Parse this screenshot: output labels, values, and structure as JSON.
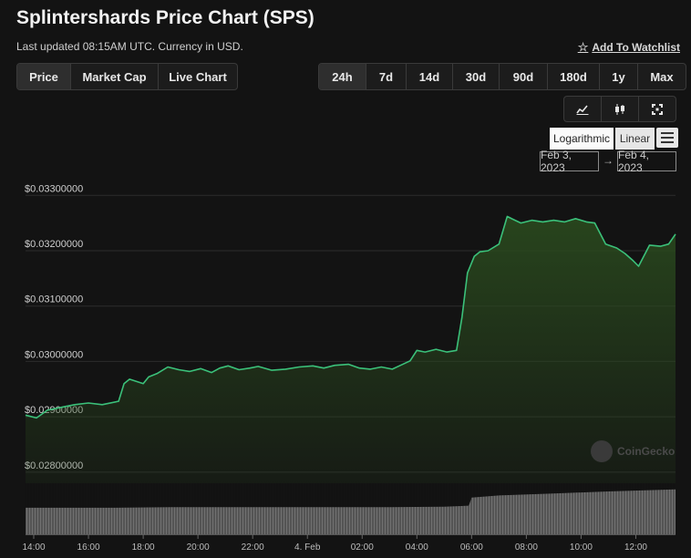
{
  "header": {
    "title": "Splintershards Price Chart (SPS)",
    "updated": "Last updated 08:15AM UTC. Currency in USD.",
    "watchlist": "Add To Watchlist"
  },
  "tabs": [
    {
      "label": "Price",
      "active": true
    },
    {
      "label": "Market Cap",
      "active": false
    },
    {
      "label": "Live Chart",
      "active": false
    }
  ],
  "ranges": [
    {
      "label": "24h",
      "active": true
    },
    {
      "label": "7d",
      "active": false
    },
    {
      "label": "14d",
      "active": false
    },
    {
      "label": "30d",
      "active": false
    },
    {
      "label": "90d",
      "active": false
    },
    {
      "label": "180d",
      "active": false
    },
    {
      "label": "1y",
      "active": false
    },
    {
      "label": "Max",
      "active": false
    }
  ],
  "tools": [
    "line-chart-icon",
    "candlestick-icon",
    "fullscreen-icon"
  ],
  "scale": {
    "logarithmic": "Logarithmic",
    "linear": "Linear"
  },
  "date_range": {
    "from": "Feb 3, 2023",
    "arrow": "→",
    "to": "Feb 4, 2023"
  },
  "watermark": "CoinGecko",
  "colors": {
    "line": "#3bc17a",
    "fill": "#2a4a1e",
    "grid": "#2c2c2c",
    "volume": "#8a8a8a"
  },
  "chart_data": {
    "type": "area",
    "ylim": [
      0.0278,
      0.0334
    ],
    "y_ticks": [
      {
        "value": 0.028,
        "label": "$0.02800000"
      },
      {
        "value": 0.029,
        "label": "$0.02900000"
      },
      {
        "value": 0.03,
        "label": "$0.03000000"
      },
      {
        "value": 0.031,
        "label": "$0.03100000"
      },
      {
        "value": 0.032,
        "label": "$0.03200000"
      },
      {
        "value": 0.033,
        "label": "$0.03300000"
      }
    ],
    "xlim": [
      13.7,
      37.45
    ],
    "x_ticks": [
      {
        "value": 14,
        "label": "14:00"
      },
      {
        "value": 16,
        "label": "16:00"
      },
      {
        "value": 18,
        "label": "18:00"
      },
      {
        "value": 20,
        "label": "20:00"
      },
      {
        "value": 22,
        "label": "22:00"
      },
      {
        "value": 24,
        "label": "4. Feb"
      },
      {
        "value": 26,
        "label": "02:00"
      },
      {
        "value": 28,
        "label": "04:00"
      },
      {
        "value": 30,
        "label": "06:00"
      },
      {
        "value": 32,
        "label": "08:00"
      },
      {
        "value": 34,
        "label": "10:00"
      },
      {
        "value": 36,
        "label": "12:00"
      }
    ],
    "series": [
      {
        "x": [
          13.7,
          14.1,
          14.5,
          15.1,
          15.5,
          16.0,
          16.5,
          17.1,
          17.3,
          17.5,
          18.0,
          18.2,
          18.5,
          18.9,
          19.3,
          19.7,
          20.1,
          20.5,
          20.8,
          21.1,
          21.5,
          21.9,
          22.2,
          22.7,
          23.2,
          23.7,
          24.2,
          24.6,
          25.0,
          25.5,
          25.9,
          26.3,
          26.7,
          27.1,
          27.4,
          27.75,
          28.0,
          28.3,
          28.7,
          29.1,
          29.45,
          29.65,
          29.85,
          30.1,
          30.3,
          30.6,
          31.0,
          31.3,
          31.5,
          31.8,
          32.2,
          32.6,
          33.0,
          33.4,
          33.8,
          34.2,
          34.5,
          34.9,
          35.3,
          35.6,
          35.9,
          36.1,
          36.5,
          36.9,
          37.2,
          37.45
        ],
        "values": [
          0.02903,
          0.02898,
          0.02912,
          0.02918,
          0.02922,
          0.02925,
          0.02922,
          0.02928,
          0.0296,
          0.02968,
          0.0296,
          0.02972,
          0.02978,
          0.0299,
          0.02985,
          0.02982,
          0.02987,
          0.0298,
          0.02988,
          0.02992,
          0.02985,
          0.02988,
          0.02991,
          0.02984,
          0.02986,
          0.0299,
          0.02992,
          0.02988,
          0.02993,
          0.02995,
          0.02988,
          0.02986,
          0.0299,
          0.02986,
          0.02993,
          0.03001,
          0.0302,
          0.03017,
          0.03022,
          0.03017,
          0.0302,
          0.0308,
          0.0316,
          0.0319,
          0.03198,
          0.032,
          0.03212,
          0.03262,
          0.03257,
          0.0325,
          0.03255,
          0.03252,
          0.03255,
          0.03252,
          0.03258,
          0.03252,
          0.0325,
          0.03212,
          0.03205,
          0.03195,
          0.03182,
          0.03172,
          0.0321,
          0.03208,
          0.03212,
          0.0323
        ]
      }
    ],
    "volume": {
      "x": [
        13.7,
        15.0,
        17.0,
        19.0,
        21.0,
        23.0,
        25.0,
        27.0,
        29.0,
        29.9,
        30.0,
        31.0,
        33.0,
        35.0,
        37.45
      ],
      "values": [
        0.52,
        0.52,
        0.52,
        0.53,
        0.53,
        0.53,
        0.53,
        0.53,
        0.54,
        0.56,
        0.72,
        0.76,
        0.8,
        0.84,
        0.88
      ]
    }
  }
}
